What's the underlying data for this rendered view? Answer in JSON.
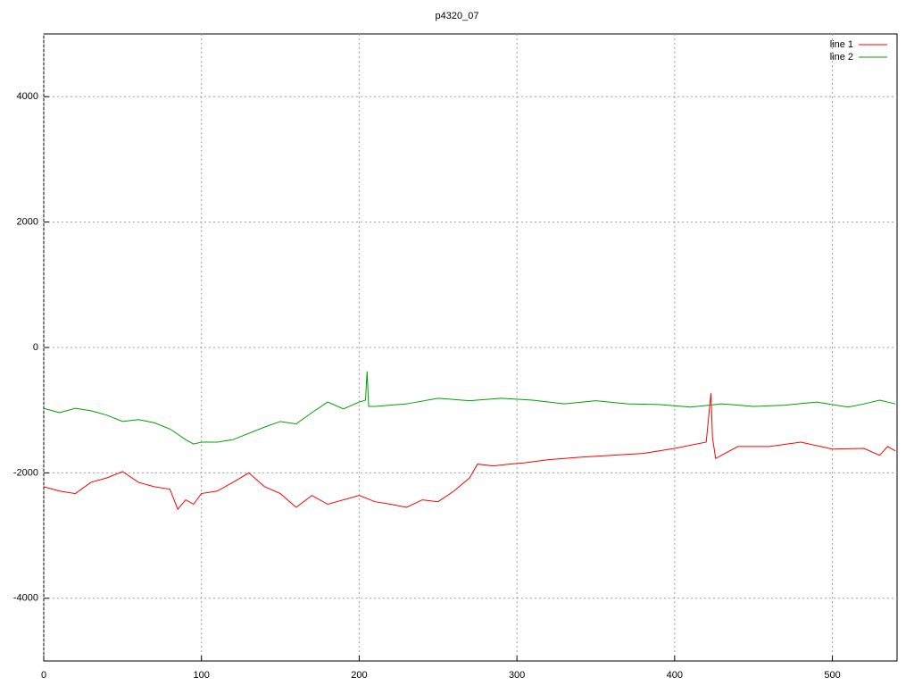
{
  "chart_data": {
    "type": "line",
    "title": "p4320_07",
    "xlim": [
      0,
      541
    ],
    "ylim": [
      -5000,
      5000
    ],
    "xticks": [
      0,
      100,
      200,
      300,
      400,
      500
    ],
    "yticks": [
      -4000,
      -2000,
      0,
      2000,
      4000
    ],
    "grid": true,
    "legend": "top-right",
    "series": [
      {
        "name": "line 1",
        "color": "#ff0000",
        "x": [
          0,
          10,
          20,
          30,
          40,
          50,
          60,
          70,
          80,
          85,
          90,
          95,
          100,
          110,
          120,
          130,
          140,
          150,
          160,
          170,
          180,
          190,
          200,
          210,
          220,
          230,
          240,
          250,
          260,
          270,
          275,
          285,
          295,
          305,
          320,
          340,
          360,
          380,
          400,
          420,
          423,
          424,
          426,
          440,
          460,
          480,
          500,
          520,
          530,
          535,
          540
        ],
        "values": [
          -2220,
          -2290,
          -2330,
          -2150,
          -2080,
          -1980,
          -2150,
          -2220,
          -2260,
          -2580,
          -2430,
          -2500,
          -2330,
          -2290,
          -2150,
          -2000,
          -2220,
          -2330,
          -2550,
          -2360,
          -2500,
          -2430,
          -2360,
          -2460,
          -2500,
          -2550,
          -2430,
          -2460,
          -2290,
          -2080,
          -1860,
          -1890,
          -1860,
          -1840,
          -1790,
          -1750,
          -1720,
          -1690,
          -1610,
          -1510,
          -730,
          -1440,
          -1770,
          -1580,
          -1580,
          -1510,
          -1620,
          -1610,
          -1720,
          -1580,
          -1650
        ]
      },
      {
        "name": "line 2",
        "color": "#00a000",
        "x": [
          0,
          10,
          20,
          30,
          40,
          50,
          60,
          70,
          80,
          90,
          95,
          100,
          110,
          120,
          130,
          140,
          150,
          160,
          170,
          180,
          190,
          200,
          204,
          205,
          206,
          210,
          230,
          250,
          270,
          290,
          310,
          330,
          350,
          370,
          390,
          410,
          430,
          450,
          470,
          490,
          510,
          520,
          530,
          540
        ],
        "values": [
          -970,
          -1040,
          -970,
          -1010,
          -1080,
          -1180,
          -1150,
          -1200,
          -1300,
          -1470,
          -1540,
          -1510,
          -1510,
          -1470,
          -1370,
          -1270,
          -1180,
          -1220,
          -1040,
          -870,
          -980,
          -870,
          -840,
          -380,
          -940,
          -940,
          -900,
          -810,
          -850,
          -810,
          -840,
          -900,
          -850,
          -900,
          -910,
          -950,
          -900,
          -940,
          -920,
          -870,
          -950,
          -900,
          -840,
          -900
        ]
      }
    ]
  }
}
